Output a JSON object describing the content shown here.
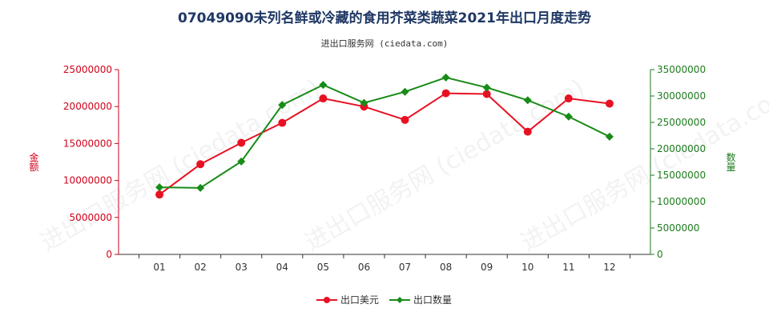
{
  "title": "07049090未列名鲜或冷藏的食用芥菜类蔬菜2021年出口月度走势",
  "subtitle": "进出口服务网 (ciedata.com)",
  "watermark": "进出口服务网 (ciedata.com)",
  "colors": {
    "left_axis": "#d0021b",
    "right_axis": "#1e7b1e",
    "series_value": "#e81123",
    "series_qty": "#178c17",
    "title": "#1f3864"
  },
  "chart_data": {
    "type": "line",
    "categories": [
      "01",
      "02",
      "03",
      "04",
      "05",
      "06",
      "07",
      "08",
      "09",
      "10",
      "11",
      "12"
    ],
    "y_left": {
      "label": "金额",
      "min": 0,
      "max": 25000000,
      "ticks": [
        "0",
        "5000000",
        "10000000",
        "15000000",
        "20000000",
        "25000000"
      ],
      "tick_values": [
        0,
        5000000,
        10000000,
        15000000,
        20000000,
        25000000
      ]
    },
    "y_right": {
      "label": "数量",
      "min": 0,
      "max": 35000000,
      "ticks": [
        "0",
        "5000000",
        "10000000",
        "15000000",
        "20000000",
        "25000000",
        "30000000",
        "35000000"
      ],
      "tick_values": [
        0,
        5000000,
        10000000,
        15000000,
        20000000,
        25000000,
        30000000,
        35000000
      ]
    },
    "series": [
      {
        "name": "出口美元",
        "axis": "left",
        "marker": "circle",
        "values": [
          8100000,
          12200000,
          15100000,
          17800000,
          21100000,
          20000000,
          18200000,
          21800000,
          21700000,
          16600000,
          21100000,
          20400000
        ]
      },
      {
        "name": "出口数量",
        "axis": "right",
        "marker": "diamond",
        "values": [
          12700000,
          12600000,
          17600000,
          28300000,
          32100000,
          28700000,
          30800000,
          33500000,
          31600000,
          29200000,
          26100000,
          22300000
        ]
      }
    ],
    "legend_position": "bottom-center",
    "grid": false
  }
}
